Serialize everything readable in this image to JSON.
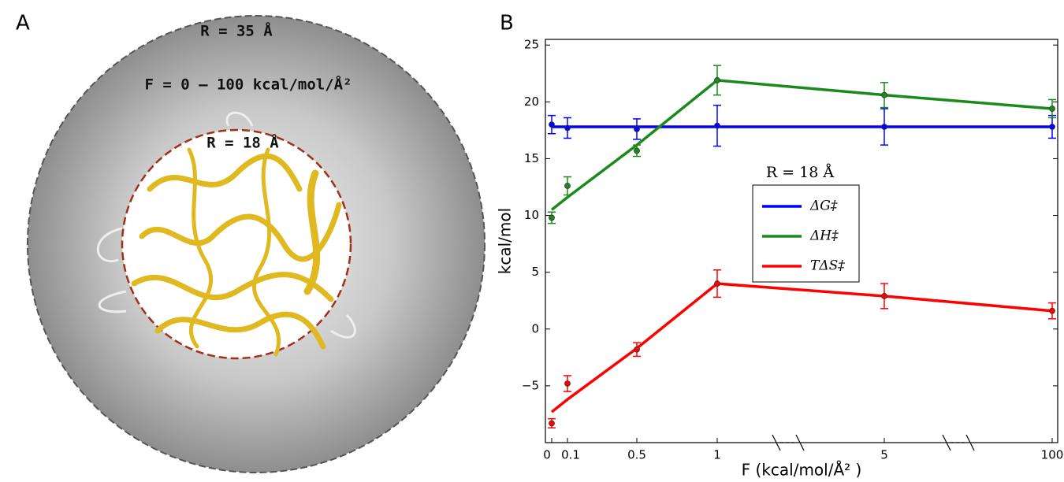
{
  "panel_a": {
    "label": "A",
    "outer": "R = 35 Å",
    "force": "F = 0 – 100 kcal/mol/Å²",
    "inner": "R = 18 Å"
  },
  "chart_data": {
    "type": "errorline",
    "label": "B",
    "xlabel": "F (kcal/mol/Å² )",
    "ylabel": "kcal/mol",
    "legend_title": "R = 18 Å",
    "legend": "center",
    "categories": [
      "0",
      "0.1",
      "0.5",
      "1",
      "5",
      "100"
    ],
    "ylim": [
      -10,
      25.5
    ],
    "yticks": [
      {
        "value": -5,
        "label": "−5"
      },
      0,
      5,
      10,
      15,
      20,
      25
    ],
    "series": [
      {
        "name": "ΔG‡",
        "color": "#0000ff",
        "values": [
          18.0,
          17.7,
          17.6,
          17.9,
          17.8,
          17.8
        ],
        "errors": [
          0.8,
          0.9,
          0.9,
          1.8,
          1.6,
          1.0
        ],
        "line_values": [
          17.8,
          17.8,
          17.8,
          17.8,
          17.8,
          17.8
        ]
      },
      {
        "name": "ΔH‡",
        "color": "#1a8a1a",
        "values": [
          9.8,
          12.6,
          15.7,
          21.9,
          20.6,
          19.4
        ],
        "errors": [
          0.5,
          0.8,
          0.5,
          1.3,
          1.1,
          0.8
        ],
        "line_values": [
          10.5,
          11.6,
          16.2,
          21.9,
          20.6,
          19.4
        ]
      },
      {
        "name": "TΔS‡",
        "color": "#ff0000",
        "values": [
          -8.3,
          -4.8,
          -1.8,
          4.0,
          2.9,
          1.6
        ],
        "errors": [
          0.4,
          0.7,
          0.6,
          1.2,
          1.1,
          0.7
        ],
        "line_values": [
          -7.3,
          -6.2,
          -1.7,
          4.0,
          2.9,
          1.6
        ]
      }
    ]
  }
}
